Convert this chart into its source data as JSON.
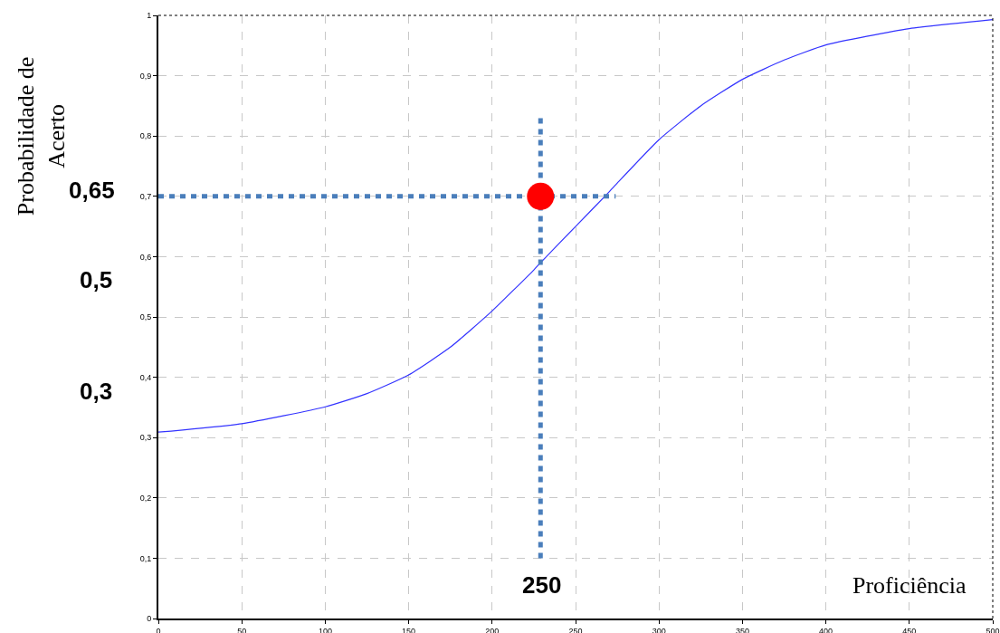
{
  "chart_data": {
    "type": "line",
    "xlabel": "Proficiência",
    "ylabel": "Probabilidade de\nAcerto",
    "annotations": [
      "0,65",
      "0,5",
      "0,3",
      "250"
    ],
    "xlim": [
      0,
      500
    ],
    "xticks": [
      0,
      50,
      100,
      150,
      200,
      250,
      300,
      350,
      400,
      450,
      500
    ],
    "ylim": [
      0,
      1
    ],
    "yticks": [
      0,
      {
        "value": 0.1,
        "label": "0,1"
      },
      {
        "value": 0.2,
        "label": "0,2"
      },
      {
        "value": 0.3,
        "label": "0,3"
      },
      {
        "value": 0.4,
        "label": "0,4"
      },
      {
        "value": 0.5,
        "label": "0,5"
      },
      {
        "value": 0.6,
        "label": "0,6"
      },
      {
        "value": 0.7,
        "label": "0,7"
      },
      {
        "value": 0.8,
        "label": "0,8"
      },
      {
        "value": 0.9,
        "label": "0,9"
      },
      1
    ],
    "grid": true,
    "series": [
      {
        "type": "line",
        "color": "#3333ff",
        "line_style": "solid",
        "marker": "none",
        "x": [
          0,
          50,
          100,
          125,
          150,
          175,
          200,
          225,
          229,
          250,
          270,
          275,
          300,
          325,
          350,
          375,
          400,
          450,
          500
        ],
        "values": [
          0.309,
          0.323,
          0.351,
          0.373,
          0.404,
          0.45,
          0.51,
          0.578,
          0.59,
          0.65,
          0.707,
          0.722,
          0.794,
          0.85,
          0.894,
          0.926,
          0.951,
          0.978,
          0.993
        ]
      },
      {
        "type": "line",
        "color": "#4a7ebb",
        "line_style": "dotted",
        "marker": "none",
        "x": [
          0,
          274
        ],
        "values": [
          0.7,
          0.7
        ]
      },
      {
        "type": "line",
        "color": "#4a7ebb",
        "line_style": "dotted",
        "marker": "none",
        "x": [
          229,
          229
        ],
        "values": [
          0.1,
          0.83
        ]
      },
      {
        "type": "scatter",
        "color": "#ff0000",
        "marker": "circle",
        "x": [
          229
        ],
        "values": [
          0.7
        ]
      }
    ]
  }
}
